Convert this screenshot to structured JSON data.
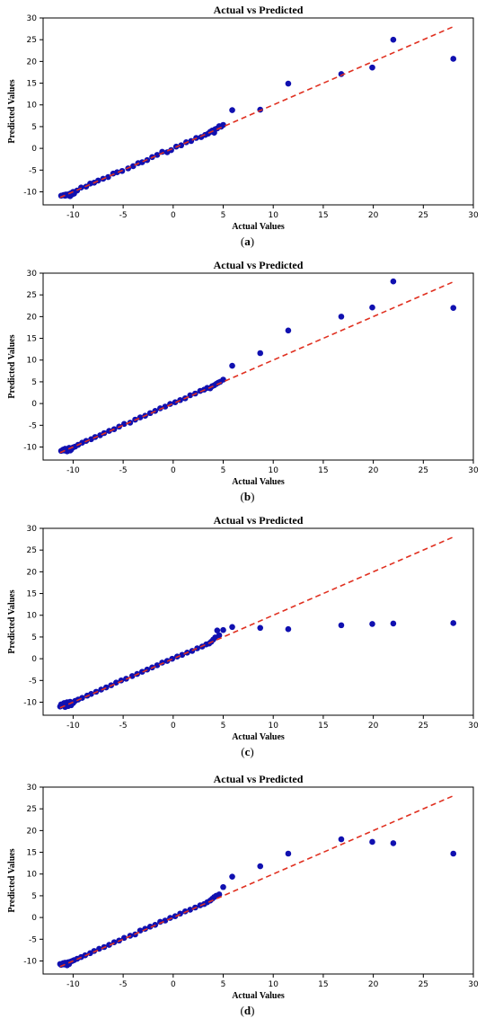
{
  "chart_data": [
    {
      "type": "scatter",
      "title": "Actual vs Predicted",
      "xlabel": "Actual Values",
      "ylabel": "Predicted Values",
      "panel_label": "(a)",
      "xlim": [
        -13,
        30
      ],
      "ylim": [
        -13,
        30
      ],
      "xticks": [
        -10,
        -5,
        0,
        5,
        10,
        15,
        20,
        25,
        30
      ],
      "yticks": [
        -10,
        -5,
        0,
        5,
        10,
        15,
        20,
        25,
        30
      ],
      "reference_line": {
        "style": "dashed",
        "color": "#e03020",
        "from": [
          -11.3,
          -11.3
        ],
        "to": [
          28.1,
          28.1
        ]
      },
      "point_color": "#1010b0",
      "points": [
        [
          -11.2,
          -10.9
        ],
        [
          -11.0,
          -10.8
        ],
        [
          -10.9,
          -10.7
        ],
        [
          -10.8,
          -10.9
        ],
        [
          -10.7,
          -10.6
        ],
        [
          -10.6,
          -10.8
        ],
        [
          -10.5,
          -10.7
        ],
        [
          -10.4,
          -10.5
        ],
        [
          -10.3,
          -11.0
        ],
        [
          -10.2,
          -10.3
        ],
        [
          -10.1,
          -10.6
        ],
        [
          -10.0,
          -10.0
        ],
        [
          -9.9,
          -10.4
        ],
        [
          -9.6,
          -9.7
        ],
        [
          -9.2,
          -9.0
        ],
        [
          -8.7,
          -8.8
        ],
        [
          -8.3,
          -8.1
        ],
        [
          -7.9,
          -7.9
        ],
        [
          -7.5,
          -7.4
        ],
        [
          -7.0,
          -7.0
        ],
        [
          -6.5,
          -6.6
        ],
        [
          -6.0,
          -5.8
        ],
        [
          -5.6,
          -5.5
        ],
        [
          -5.1,
          -5.2
        ],
        [
          -4.5,
          -4.6
        ],
        [
          -4.0,
          -4.1
        ],
        [
          -3.5,
          -3.4
        ],
        [
          -3.1,
          -3.2
        ],
        [
          -2.6,
          -2.7
        ],
        [
          -2.1,
          -2.0
        ],
        [
          -1.6,
          -1.5
        ],
        [
          -1.1,
          -0.8
        ],
        [
          -0.6,
          -0.9
        ],
        [
          -0.2,
          -0.4
        ],
        [
          0.3,
          0.4
        ],
        [
          0.8,
          0.7
        ],
        [
          1.3,
          1.4
        ],
        [
          1.8,
          1.7
        ],
        [
          2.3,
          2.4
        ],
        [
          2.8,
          2.6
        ],
        [
          3.2,
          3.1
        ],
        [
          3.5,
          3.4
        ],
        [
          3.7,
          3.8
        ],
        [
          3.9,
          4.1
        ],
        [
          4.1,
          3.6
        ],
        [
          4.2,
          4.4
        ],
        [
          4.4,
          4.6
        ],
        [
          4.6,
          5.1
        ],
        [
          4.8,
          5.0
        ],
        [
          5.0,
          5.4
        ],
        [
          5.9,
          8.8
        ],
        [
          8.7,
          8.9
        ],
        [
          11.5,
          14.9
        ],
        [
          16.8,
          17.1
        ],
        [
          19.9,
          18.6
        ],
        [
          22.0,
          25.0
        ],
        [
          28.0,
          20.6
        ]
      ]
    },
    {
      "type": "scatter",
      "title": "Actual vs Predicted",
      "xlabel": "Actual Values",
      "ylabel": "Predicted Values",
      "panel_label": "(b)",
      "xlim": [
        -13,
        30
      ],
      "ylim": [
        -13,
        30
      ],
      "xticks": [
        -10,
        -5,
        0,
        5,
        10,
        15,
        20,
        25,
        30
      ],
      "yticks": [
        -10,
        -5,
        0,
        5,
        10,
        15,
        20,
        25,
        30
      ],
      "reference_line": {
        "style": "dashed",
        "color": "#e03020",
        "from": [
          -11.3,
          -11.3
        ],
        "to": [
          28.1,
          28.1
        ]
      },
      "point_color": "#1010b0",
      "points": [
        [
          -11.2,
          -10.9
        ],
        [
          -11.0,
          -10.6
        ],
        [
          -10.9,
          -10.8
        ],
        [
          -10.8,
          -10.4
        ],
        [
          -10.7,
          -10.7
        ],
        [
          -10.6,
          -11.0
        ],
        [
          -10.5,
          -10.5
        ],
        [
          -10.4,
          -10.2
        ],
        [
          -10.3,
          -10.8
        ],
        [
          -10.2,
          -10.6
        ],
        [
          -10.0,
          -10.1
        ],
        [
          -9.8,
          -9.9
        ],
        [
          -9.5,
          -9.5
        ],
        [
          -9.1,
          -9.0
        ],
        [
          -8.7,
          -8.6
        ],
        [
          -8.2,
          -8.2
        ],
        [
          -7.8,
          -7.7
        ],
        [
          -7.3,
          -7.3
        ],
        [
          -6.9,
          -6.8
        ],
        [
          -6.4,
          -6.3
        ],
        [
          -5.9,
          -5.9
        ],
        [
          -5.4,
          -5.3
        ],
        [
          -4.9,
          -4.7
        ],
        [
          -4.3,
          -4.4
        ],
        [
          -3.8,
          -3.7
        ],
        [
          -3.3,
          -3.2
        ],
        [
          -2.8,
          -2.8
        ],
        [
          -2.3,
          -2.2
        ],
        [
          -1.8,
          -1.7
        ],
        [
          -1.3,
          -1.1
        ],
        [
          -0.8,
          -0.7
        ],
        [
          -0.3,
          -0.1
        ],
        [
          0.2,
          0.3
        ],
        [
          0.7,
          0.8
        ],
        [
          1.2,
          1.2
        ],
        [
          1.7,
          1.9
        ],
        [
          2.2,
          2.3
        ],
        [
          2.7,
          2.9
        ],
        [
          3.1,
          3.2
        ],
        [
          3.4,
          3.6
        ],
        [
          3.7,
          3.5
        ],
        [
          3.9,
          4.0
        ],
        [
          4.1,
          4.2
        ],
        [
          4.3,
          4.5
        ],
        [
          4.5,
          4.8
        ],
        [
          4.7,
          5.0
        ],
        [
          5.0,
          5.5
        ],
        [
          5.9,
          8.7
        ],
        [
          8.7,
          11.6
        ],
        [
          11.5,
          16.8
        ],
        [
          16.8,
          20.0
        ],
        [
          19.9,
          22.1
        ],
        [
          22.0,
          28.1
        ],
        [
          28.0,
          22.0
        ]
      ]
    },
    {
      "type": "scatter",
      "title": "Actual vs Predicted",
      "xlabel": "Actual Values",
      "ylabel": "Predicted Values",
      "panel_label": "(c)",
      "xlim": [
        -13,
        30
      ],
      "ylim": [
        -13,
        30
      ],
      "xticks": [
        -10,
        -5,
        0,
        5,
        10,
        15,
        20,
        25,
        30
      ],
      "yticks": [
        -10,
        -5,
        0,
        5,
        10,
        15,
        20,
        25,
        30
      ],
      "reference_line": {
        "style": "dashed",
        "color": "#e03020",
        "from": [
          -11.3,
          -11.3
        ],
        "to": [
          28.1,
          28.1
        ]
      },
      "point_color": "#1010b0",
      "points": [
        [
          -11.3,
          -11.0
        ],
        [
          -11.2,
          -10.5
        ],
        [
          -11.0,
          -10.8
        ],
        [
          -10.9,
          -10.2
        ],
        [
          -10.8,
          -11.1
        ],
        [
          -10.7,
          -10.6
        ],
        [
          -10.6,
          -10.0
        ],
        [
          -10.5,
          -10.9
        ],
        [
          -10.4,
          -10.4
        ],
        [
          -10.3,
          -9.9
        ],
        [
          -10.2,
          -10.7
        ],
        [
          -10.0,
          -10.2
        ],
        [
          -9.8,
          -9.7
        ],
        [
          -9.5,
          -9.4
        ],
        [
          -9.1,
          -9.0
        ],
        [
          -8.6,
          -8.5
        ],
        [
          -8.2,
          -8.1
        ],
        [
          -7.7,
          -7.6
        ],
        [
          -7.2,
          -7.1
        ],
        [
          -6.7,
          -6.6
        ],
        [
          -6.2,
          -6.1
        ],
        [
          -5.7,
          -5.5
        ],
        [
          -5.2,
          -5.0
        ],
        [
          -4.7,
          -4.6
        ],
        [
          -4.1,
          -4.0
        ],
        [
          -3.6,
          -3.5
        ],
        [
          -3.1,
          -3.0
        ],
        [
          -2.6,
          -2.5
        ],
        [
          -2.1,
          -2.0
        ],
        [
          -1.6,
          -1.5
        ],
        [
          -1.1,
          -0.9
        ],
        [
          -0.6,
          -0.5
        ],
        [
          -0.1,
          0.0
        ],
        [
          0.4,
          0.5
        ],
        [
          0.9,
          0.9
        ],
        [
          1.4,
          1.4
        ],
        [
          1.9,
          1.8
        ],
        [
          2.4,
          2.4
        ],
        [
          2.9,
          2.8
        ],
        [
          3.3,
          3.3
        ],
        [
          3.6,
          3.5
        ],
        [
          3.8,
          3.9
        ],
        [
          4.0,
          4.4
        ],
        [
          4.2,
          4.9
        ],
        [
          4.4,
          6.5
        ],
        [
          4.6,
          5.4
        ],
        [
          5.0,
          6.6
        ],
        [
          5.9,
          7.3
        ],
        [
          8.7,
          7.1
        ],
        [
          11.5,
          6.8
        ],
        [
          16.8,
          7.7
        ],
        [
          19.9,
          8.0
        ],
        [
          22.0,
          8.1
        ],
        [
          28.0,
          8.2
        ]
      ]
    },
    {
      "type": "scatter",
      "title": "Actual vs Predicted",
      "xlabel": "Actual Values",
      "ylabel": "Predicted Values",
      "panel_label": "(d)",
      "xlim": [
        -13,
        30
      ],
      "ylim": [
        -13,
        30
      ],
      "xticks": [
        -10,
        -5,
        0,
        5,
        10,
        15,
        20,
        25,
        30
      ],
      "yticks": [
        -10,
        -5,
        0,
        5,
        10,
        15,
        20,
        25,
        30
      ],
      "reference_line": {
        "style": "dashed",
        "color": "#e03020",
        "from": [
          -11.3,
          -11.3
        ],
        "to": [
          28.1,
          28.1
        ]
      },
      "point_color": "#1010b0",
      "points": [
        [
          -11.3,
          -10.7
        ],
        [
          -11.2,
          -10.9
        ],
        [
          -11.0,
          -10.5
        ],
        [
          -10.9,
          -10.8
        ],
        [
          -10.8,
          -10.4
        ],
        [
          -10.7,
          -10.6
        ],
        [
          -10.6,
          -11.0
        ],
        [
          -10.5,
          -10.3
        ],
        [
          -10.4,
          -10.7
        ],
        [
          -10.3,
          -10.2
        ],
        [
          -10.1,
          -10.0
        ],
        [
          -9.9,
          -9.8
        ],
        [
          -9.6,
          -9.5
        ],
        [
          -9.2,
          -9.1
        ],
        [
          -8.8,
          -8.7
        ],
        [
          -8.3,
          -8.2
        ],
        [
          -7.9,
          -7.7
        ],
        [
          -7.4,
          -7.2
        ],
        [
          -6.9,
          -6.8
        ],
        [
          -6.4,
          -6.3
        ],
        [
          -5.9,
          -5.7
        ],
        [
          -5.4,
          -5.3
        ],
        [
          -4.9,
          -4.7
        ],
        [
          -4.3,
          -4.2
        ],
        [
          -3.8,
          -3.9
        ],
        [
          -3.3,
          -3.0
        ],
        [
          -2.8,
          -2.6
        ],
        [
          -2.3,
          -2.1
        ],
        [
          -1.8,
          -1.7
        ],
        [
          -1.3,
          -1.0
        ],
        [
          -0.8,
          -0.7
        ],
        [
          -0.3,
          -0.1
        ],
        [
          0.2,
          0.3
        ],
        [
          0.7,
          0.9
        ],
        [
          1.2,
          1.4
        ],
        [
          1.7,
          1.8
        ],
        [
          2.2,
          2.3
        ],
        [
          2.7,
          2.8
        ],
        [
          3.1,
          3.1
        ],
        [
          3.4,
          3.5
        ],
        [
          3.7,
          3.9
        ],
        [
          3.9,
          4.3
        ],
        [
          4.1,
          4.7
        ],
        [
          4.3,
          5.0
        ],
        [
          4.6,
          5.3
        ],
        [
          5.0,
          7.0
        ],
        [
          5.9,
          9.4
        ],
        [
          8.7,
          11.8
        ],
        [
          11.5,
          14.7
        ],
        [
          16.8,
          18.0
        ],
        [
          19.9,
          17.4
        ],
        [
          22.0,
          17.1
        ],
        [
          28.0,
          14.7
        ]
      ]
    }
  ]
}
